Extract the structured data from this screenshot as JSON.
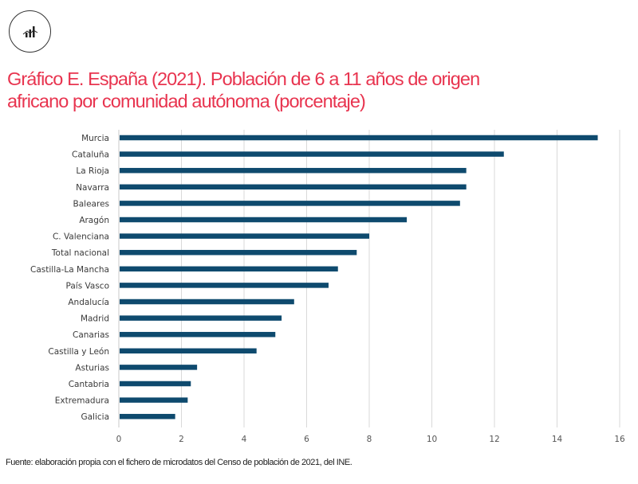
{
  "header": {
    "logo_icon": "bar-chart-trend-icon",
    "title_line1": "Gráfico E. España (2021). Población de 6 a 11 años de origen",
    "title_line2": "africano por comunidad autónoma (porcentaje)"
  },
  "footer": {
    "source": "Fuente: elaboración propia con el fichero de microdatos del Censo de población de 2021, del INE."
  },
  "colors": {
    "title": "#e8344f",
    "bar": "#0e4a6e",
    "grid": "#d9d9d9"
  },
  "chart_data": {
    "type": "bar",
    "orientation": "horizontal",
    "title": "Gráfico E. España (2021). Población de 6 a 11 años de origen africano por comunidad autónoma (porcentaje)",
    "xlabel": "",
    "ylabel": "",
    "xlim": [
      0,
      16
    ],
    "xticks": [
      0,
      2,
      4,
      6,
      8,
      10,
      12,
      14,
      16
    ],
    "grid": true,
    "legend": "none",
    "categories": [
      "Murcia",
      "Cataluña",
      "La Rioja",
      "Navarra",
      "Baleares",
      "Aragón",
      "C. Valenciana",
      "Total nacional",
      "Castilla-La Mancha",
      "País Vasco",
      "Andalucía",
      "Madrid",
      "Canarias",
      "Castilla y León",
      "Asturias",
      "Cantabria",
      "Extremadura",
      "Galicia"
    ],
    "values": [
      15.3,
      12.3,
      11.1,
      11.1,
      10.9,
      9.2,
      8.0,
      7.6,
      7.0,
      6.7,
      5.6,
      5.2,
      5.0,
      4.4,
      2.5,
      2.3,
      2.2,
      1.8
    ]
  }
}
